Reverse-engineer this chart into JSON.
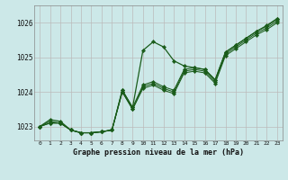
{
  "title": "Graphe pression niveau de la mer (hPa)",
  "bg_color": "#cce8e8",
  "line_color": "#1a5c1a",
  "xlim_min": -0.5,
  "xlim_max": 23.5,
  "ylim_min": 1022.6,
  "ylim_max": 1026.5,
  "xticks": [
    0,
    1,
    2,
    3,
    4,
    5,
    6,
    7,
    8,
    9,
    10,
    11,
    12,
    13,
    14,
    15,
    16,
    17,
    18,
    19,
    20,
    21,
    22,
    23
  ],
  "yticks": [
    1023,
    1024,
    1025,
    1026
  ],
  "series": [
    [
      1023.0,
      1023.2,
      1023.15,
      1022.9,
      1022.82,
      1022.82,
      1022.85,
      1022.9,
      1024.05,
      1023.55,
      1025.2,
      1025.45,
      1025.3,
      1024.9,
      1024.75,
      1024.7,
      1024.65,
      1024.35,
      1025.15,
      1025.35,
      1025.55,
      1025.75,
      1025.92,
      1026.12
    ],
    [
      1023.0,
      1023.15,
      1023.1,
      1022.9,
      1022.82,
      1022.82,
      1022.85,
      1022.9,
      1024.05,
      1023.55,
      1024.2,
      1024.3,
      1024.15,
      1024.05,
      1024.65,
      1024.7,
      1024.65,
      1024.35,
      1025.15,
      1025.35,
      1025.55,
      1025.75,
      1025.9,
      1026.1
    ],
    [
      1023.0,
      1023.1,
      1023.1,
      1022.9,
      1022.82,
      1022.82,
      1022.85,
      1022.9,
      1024.0,
      1023.5,
      1024.15,
      1024.25,
      1024.1,
      1024.0,
      1024.6,
      1024.65,
      1024.6,
      1024.3,
      1025.1,
      1025.3,
      1025.5,
      1025.7,
      1025.85,
      1026.05
    ],
    [
      1023.0,
      1023.1,
      1023.1,
      1022.9,
      1022.82,
      1022.82,
      1022.85,
      1022.9,
      1024.0,
      1023.5,
      1024.1,
      1024.2,
      1024.05,
      1023.95,
      1024.55,
      1024.6,
      1024.55,
      1024.25,
      1025.05,
      1025.25,
      1025.45,
      1025.65,
      1025.8,
      1026.0
    ]
  ]
}
